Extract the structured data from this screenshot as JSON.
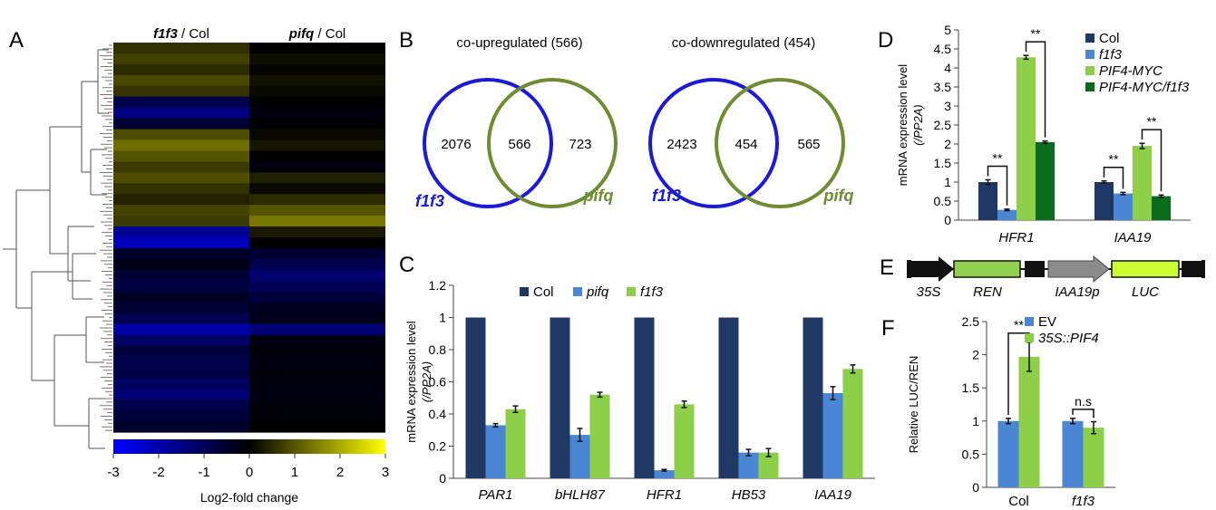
{
  "panels": {
    "A": {
      "letter": "A",
      "col_labels": [
        {
          "gene": "f1f3",
          "suffix": " / Col"
        },
        {
          "gene": "pifq",
          "suffix": " / Col"
        }
      ],
      "colorbar_ticks": [
        "-3",
        "-2",
        "-1",
        "0",
        "1",
        "2",
        "3"
      ],
      "colorbar_label": "Log2-fold change"
    },
    "B": {
      "letter": "B",
      "venns": [
        {
          "title": "co-upregulated (566)",
          "left": "2076",
          "overlap": "566",
          "right": "723",
          "left_name": "f1f3",
          "right_name": "pifq"
        },
        {
          "title": "co-downregulated (454)",
          "left": "2423",
          "overlap": "454",
          "right": "565",
          "left_name": "f1f3",
          "right_name": "pifq"
        }
      ],
      "colors": {
        "left": "#1a1ad8",
        "right": "#6e8c32"
      }
    },
    "C": {
      "letter": "C"
    },
    "D": {
      "letter": "D"
    },
    "E": {
      "letter": "E",
      "elements": [
        "35S",
        "REN",
        "IAA19p",
        "LUC"
      ],
      "colors": {
        "black": "#111111",
        "ren": "#92d050",
        "promoter": "#8c8c8c",
        "luc": "#ccff33"
      }
    },
    "F": {
      "letter": "F"
    }
  },
  "chart_data": [
    {
      "id": "A",
      "type": "heatmap",
      "columns": [
        "f1f3 / Col",
        "pifq / Col"
      ],
      "color_scale": {
        "min": -3,
        "max": 3,
        "colors": [
          "#0000ff",
          "#000000",
          "#ffff00"
        ]
      },
      "bands": [
        [
          0.55,
          0.0
        ],
        [
          0.75,
          0.15
        ],
        [
          0.5,
          0.05
        ],
        [
          0.85,
          0.2
        ],
        [
          0.6,
          0.1
        ],
        [
          -0.9,
          0.0
        ],
        [
          -1.5,
          -0.2
        ],
        [
          -0.6,
          0.0
        ],
        [
          0.9,
          0.1
        ],
        [
          1.3,
          0.25
        ],
        [
          1.0,
          0.0
        ],
        [
          0.7,
          -0.2
        ],
        [
          0.9,
          0.35
        ],
        [
          0.6,
          0.1
        ],
        [
          0.4,
          0.5
        ],
        [
          0.8,
          1.0
        ],
        [
          0.7,
          1.4
        ],
        [
          -1.7,
          0.3
        ],
        [
          -2.2,
          0.0
        ],
        [
          -0.5,
          -0.6
        ],
        [
          -0.3,
          -0.9
        ],
        [
          -0.6,
          -1.3
        ],
        [
          -0.8,
          -1.0
        ],
        [
          -0.4,
          -0.7
        ],
        [
          -0.6,
          -0.4
        ],
        [
          -0.9,
          -0.3
        ],
        [
          -2.0,
          -1.4
        ],
        [
          -1.2,
          -0.2
        ],
        [
          -0.7,
          -0.1
        ],
        [
          -0.9,
          -0.2
        ],
        [
          -0.8,
          -0.1
        ],
        [
          -1.1,
          -0.15
        ],
        [
          -1.4,
          -0.2
        ],
        [
          -0.9,
          -0.1
        ],
        [
          -0.7,
          -0.1
        ],
        [
          -0.5,
          0.0
        ]
      ]
    },
    {
      "id": "C",
      "type": "bar",
      "categories": [
        "PAR1",
        "bHLH87",
        "HFR1",
        "HB53",
        "IAA19"
      ],
      "series": [
        {
          "name": "Col",
          "color": "#1f3864",
          "values": [
            1,
            1,
            1,
            1,
            1
          ],
          "errors": [
            0,
            0,
            0,
            0,
            0
          ]
        },
        {
          "name": "pifq",
          "color": "#4a86d4",
          "values": [
            0.33,
            0.27,
            0.05,
            0.16,
            0.53
          ],
          "errors": [
            0.01,
            0.04,
            0.005,
            0.02,
            0.04
          ]
        },
        {
          "name": "f1f3",
          "color": "#8ecf4a",
          "values": [
            0.43,
            0.52,
            0.46,
            0.16,
            0.68
          ],
          "errors": [
            0.02,
            0.015,
            0.02,
            0.025,
            0.025
          ]
        }
      ],
      "ylabel": "mRNA expression level",
      "ylabel2": "(/PP2A)",
      "ylim": [
        0,
        1.2
      ],
      "yticks": [
        "0",
        "0.2",
        "0.4",
        "0.6",
        "0.8",
        "1",
        "1.2"
      ],
      "italic_legend": [
        false,
        true,
        true
      ]
    },
    {
      "id": "D",
      "type": "bar",
      "categories": [
        "HFR1",
        "IAA19"
      ],
      "series": [
        {
          "name": "Col",
          "color": "#1f3864",
          "values": [
            1.0,
            1.0
          ],
          "errors": [
            0.06,
            0.03
          ]
        },
        {
          "name": "f1f3",
          "color": "#4a86d4",
          "values": [
            0.27,
            0.7
          ],
          "errors": [
            0.02,
            0.03
          ]
        },
        {
          "name": "PIF4-MYC",
          "color": "#8ecf4a",
          "values": [
            4.28,
            1.95
          ],
          "errors": [
            0.05,
            0.07
          ]
        },
        {
          "name": "PIF4-MYC/f1f3",
          "color": "#0b6b1d",
          "values": [
            2.05,
            0.63
          ],
          "errors": [
            0.03,
            0.03
          ]
        }
      ],
      "significance": [
        {
          "category": 0,
          "from": 0,
          "to": 1,
          "label": "**"
        },
        {
          "category": 0,
          "from": 2,
          "to": 3,
          "label": "**"
        },
        {
          "category": 1,
          "from": 0,
          "to": 1,
          "label": "**"
        },
        {
          "category": 1,
          "from": 2,
          "to": 3,
          "label": "**"
        }
      ],
      "ylabel": "mRNA expression level",
      "ylabel2": "(/PP2A)",
      "ylim": [
        0,
        5
      ],
      "yticks": [
        "0",
        "0.5",
        "1",
        "1.5",
        "2",
        "2.5",
        "3",
        "3.5",
        "4",
        "4.5",
        "5"
      ],
      "italic_legend": [
        false,
        true,
        true,
        true
      ]
    },
    {
      "id": "F",
      "type": "bar",
      "categories": [
        "Col",
        "f1f3"
      ],
      "italic_categories": [
        false,
        true
      ],
      "series": [
        {
          "name": "EV",
          "color": "#4a86d4",
          "values": [
            1.0,
            1.0
          ],
          "errors": [
            0.04,
            0.04
          ]
        },
        {
          "name": "35S::PIF4",
          "color": "#8ecf4a",
          "values": [
            1.97,
            0.9
          ],
          "errors": [
            0.22,
            0.09
          ]
        }
      ],
      "significance": [
        {
          "category": 0,
          "from": 0,
          "to": 1,
          "label": "**"
        },
        {
          "category": 1,
          "from": 0,
          "to": 1,
          "label": "n.s"
        }
      ],
      "ylabel": "Relative LUC/REN",
      "ylim": [
        0,
        2.5
      ],
      "yticks": [
        "0",
        "0.5",
        "1",
        "1.5",
        "2",
        "2.5"
      ],
      "italic_legend": [
        false,
        true
      ]
    }
  ]
}
